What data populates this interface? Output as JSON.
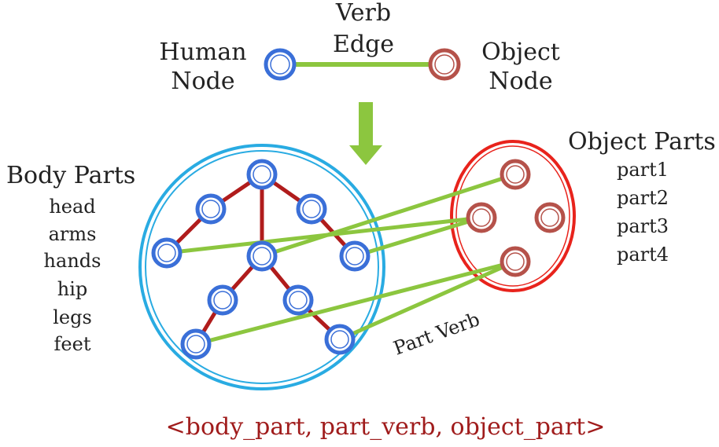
{
  "top": {
    "human_node": [
      "Human",
      "Node"
    ],
    "verb_edge": [
      "Verb",
      "Edge"
    ],
    "object_node": [
      "Object",
      "Node"
    ]
  },
  "body_parts": {
    "title": "Body Parts",
    "items": [
      "head",
      "arms",
      "hands",
      "hip",
      "legs",
      "feet"
    ]
  },
  "object_parts": {
    "title": "Object Parts",
    "items": [
      "part1",
      "part2",
      "part3",
      "part4"
    ]
  },
  "part_verb_label": "Part Verb",
  "formula": "<body_part, part_verb, object_part>",
  "colors": {
    "human_node": "#3a6fd8",
    "object_node": "#b5524a",
    "edge_green": "#8cc63f",
    "skeleton_red": "#b01c1c",
    "body_circle": "#29abe2",
    "object_ellipse": "#e8231c",
    "arrow": "#8cc63f",
    "formula_text": "#a01c1c"
  }
}
